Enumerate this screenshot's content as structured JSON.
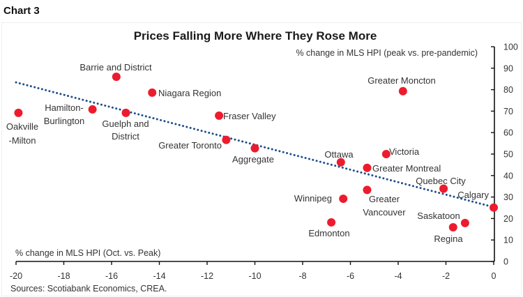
{
  "header": {
    "chart_number": "Chart 3"
  },
  "footer": {
    "sources": "Sources: Scotiabank Economics, CREA."
  },
  "colors": {
    "points": "#ec1c2e",
    "trend": "#1f4e8c"
  },
  "chart_data": {
    "type": "scatter",
    "title": "Prices Falling More Where They Rose More",
    "xlabel": "% change in MLS HPI (Oct. vs. Peak)",
    "ylabel": "% change in MLS HPI (peak vs. pre-pandemic)",
    "xlim": [
      -20,
      0
    ],
    "ylim": [
      0,
      100
    ],
    "xticks": [
      -20,
      -18,
      -16,
      -14,
      -12,
      -10,
      -8,
      -6,
      -4,
      -2,
      0
    ],
    "yticks": [
      0,
      10,
      20,
      30,
      40,
      50,
      60,
      70,
      80,
      90,
      100
    ],
    "y_axis_side": "right",
    "grid": false,
    "legend": "none",
    "points": [
      {
        "name": "Oakville-Milton",
        "label_lines": [
          "Oakville",
          "-Milton"
        ],
        "x": -19.9,
        "y": 69.2
      },
      {
        "name": "Hamilton-Burlington",
        "label_lines": [
          "Hamilton-",
          "Burlington"
        ],
        "x": -16.8,
        "y": 70.8
      },
      {
        "name": "Barrie and District",
        "label_lines": [
          "Barrie and District"
        ],
        "x": -15.8,
        "y": 86.0
      },
      {
        "name": "Guelph and District",
        "label_lines": [
          "Guelph and",
          "District"
        ],
        "x": -15.4,
        "y": 69.2
      },
      {
        "name": "Niagara Region",
        "label_lines": [
          "Niagara Region"
        ],
        "x": -14.3,
        "y": 78.6
      },
      {
        "name": "Fraser Valley",
        "label_lines": [
          "Fraser Valley"
        ],
        "x": -11.5,
        "y": 67.9
      },
      {
        "name": "Greater Toronto",
        "label_lines": [
          "Greater Toronto"
        ],
        "x": -11.2,
        "y": 56.6
      },
      {
        "name": "Aggregate",
        "label_lines": [
          "Aggregate"
        ],
        "x": -10.0,
        "y": 52.7
      },
      {
        "name": "Ottawa",
        "label_lines": [
          "Ottawa"
        ],
        "x": -6.4,
        "y": 46.2
      },
      {
        "name": "Greater Montreal",
        "label_lines": [
          "Greater Montreal"
        ],
        "x": -5.3,
        "y": 43.6
      },
      {
        "name": "Victoria",
        "label_lines": [
          "Victoria"
        ],
        "x": -4.5,
        "y": 50.0
      },
      {
        "name": "Greater Moncton",
        "label_lines": [
          "Greater Moncton"
        ],
        "x": -3.8,
        "y": 79.3
      },
      {
        "name": "Greater Vancouver",
        "label_lines": [
          "Greater",
          "Vancouver"
        ],
        "x": -5.3,
        "y": 33.3
      },
      {
        "name": "Winnipeg",
        "label_lines": [
          "Winnipeg"
        ],
        "x": -6.3,
        "y": 29.2
      },
      {
        "name": "Edmonton",
        "label_lines": [
          "Edmonton"
        ],
        "x": -6.8,
        "y": 18.2
      },
      {
        "name": "Quebec City",
        "label_lines": [
          "Quebec City"
        ],
        "x": -2.1,
        "y": 33.9
      },
      {
        "name": "Calgary",
        "label_lines": [
          "Calgary"
        ],
        "x": 0.0,
        "y": 25.1
      },
      {
        "name": "Saskatoon",
        "label_lines": [
          "Saskatoon"
        ],
        "x": -1.2,
        "y": 17.9
      },
      {
        "name": "Regina",
        "label_lines": [
          "Regina"
        ],
        "x": -1.7,
        "y": 15.9
      }
    ],
    "trendline": {
      "style": "dotted",
      "x": [
        -20,
        0
      ],
      "y": [
        83.4,
        25.3
      ]
    }
  }
}
